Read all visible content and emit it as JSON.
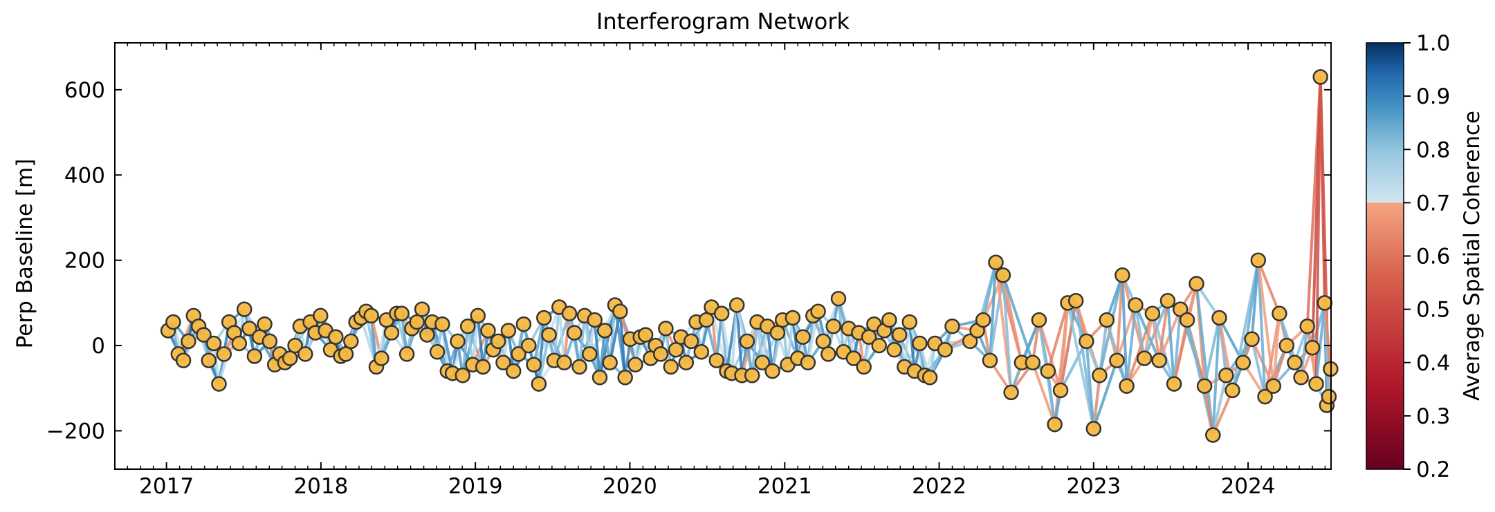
{
  "chart_data": {
    "type": "scatter",
    "title": "Interferogram Network",
    "xlabel": "",
    "ylabel": "Perp Baseline [m]",
    "xlim": [
      "2016-09-01",
      "2024-07-15"
    ],
    "ylim": [
      -290,
      710
    ],
    "x_ticks": [
      "2017",
      "2018",
      "2019",
      "2020",
      "2021",
      "2022",
      "2023",
      "2024"
    ],
    "y_ticks": [
      -200,
      0,
      200,
      400,
      600
    ],
    "y_tick_labels": [
      "−200",
      "0",
      "200",
      "400",
      "600"
    ],
    "grid": false,
    "marker_color": "#f5b842",
    "marker_edge_color": "#333333",
    "colorbar": {
      "label": "Average Spatial Coherence",
      "range": [
        0.2,
        1.0
      ],
      "ticks": [
        "0.2",
        "0.3",
        "0.4",
        "0.5",
        "0.6",
        "0.7",
        "0.8",
        "0.9",
        "1.0"
      ],
      "colormap": "RdBu",
      "threshold": 0.7,
      "stops_low": [
        "#67001f",
        "#b2182b",
        "#d6604d",
        "#f4a582"
      ],
      "stops_high": [
        "#d1e5f0",
        "#92c5de",
        "#4393c3",
        "#2166ac",
        "#053061"
      ]
    },
    "acquisitions": [
      {
        "date": "2017-01-05",
        "bperp": 35
      },
      {
        "date": "2017-01-17",
        "bperp": 55
      },
      {
        "date": "2017-01-29",
        "bperp": -20
      },
      {
        "date": "2017-02-10",
        "bperp": -35
      },
      {
        "date": "2017-02-22",
        "bperp": 10
      },
      {
        "date": "2017-03-06",
        "bperp": 70
      },
      {
        "date": "2017-03-18",
        "bperp": 45
      },
      {
        "date": "2017-03-30",
        "bperp": 25
      },
      {
        "date": "2017-04-11",
        "bperp": -35
      },
      {
        "date": "2017-04-23",
        "bperp": 5
      },
      {
        "date": "2017-05-05",
        "bperp": -90
      },
      {
        "date": "2017-05-17",
        "bperp": -20
      },
      {
        "date": "2017-05-29",
        "bperp": 55
      },
      {
        "date": "2017-06-10",
        "bperp": 30
      },
      {
        "date": "2017-06-22",
        "bperp": 5
      },
      {
        "date": "2017-07-04",
        "bperp": 85
      },
      {
        "date": "2017-07-16",
        "bperp": 40
      },
      {
        "date": "2017-07-28",
        "bperp": -25
      },
      {
        "date": "2017-08-09",
        "bperp": 20
      },
      {
        "date": "2017-08-21",
        "bperp": 50
      },
      {
        "date": "2017-09-02",
        "bperp": 10
      },
      {
        "date": "2017-09-14",
        "bperp": -45
      },
      {
        "date": "2017-09-26",
        "bperp": -20
      },
      {
        "date": "2017-10-08",
        "bperp": -40
      },
      {
        "date": "2017-10-20",
        "bperp": -30
      },
      {
        "date": "2017-11-01",
        "bperp": 0
      },
      {
        "date": "2017-11-13",
        "bperp": 45
      },
      {
        "date": "2017-11-25",
        "bperp": -20
      },
      {
        "date": "2017-12-07",
        "bperp": 55
      },
      {
        "date": "2017-12-19",
        "bperp": 30
      },
      {
        "date": "2017-12-31",
        "bperp": 70
      },
      {
        "date": "2018-01-12",
        "bperp": 35
      },
      {
        "date": "2018-01-24",
        "bperp": -10
      },
      {
        "date": "2018-02-05",
        "bperp": 20
      },
      {
        "date": "2018-02-17",
        "bperp": -25
      },
      {
        "date": "2018-03-01",
        "bperp": -20
      },
      {
        "date": "2018-03-13",
        "bperp": 10
      },
      {
        "date": "2018-03-25",
        "bperp": 55
      },
      {
        "date": "2018-04-06",
        "bperp": 65
      },
      {
        "date": "2018-04-18",
        "bperp": 80
      },
      {
        "date": "2018-04-30",
        "bperp": 70
      },
      {
        "date": "2018-05-12",
        "bperp": -50
      },
      {
        "date": "2018-05-24",
        "bperp": -30
      },
      {
        "date": "2018-06-05",
        "bperp": 60
      },
      {
        "date": "2018-06-17",
        "bperp": 30
      },
      {
        "date": "2018-06-29",
        "bperp": 75
      },
      {
        "date": "2018-07-11",
        "bperp": 75
      },
      {
        "date": "2018-07-23",
        "bperp": -20
      },
      {
        "date": "2018-08-04",
        "bperp": 40
      },
      {
        "date": "2018-08-16",
        "bperp": 55
      },
      {
        "date": "2018-08-28",
        "bperp": 85
      },
      {
        "date": "2018-09-09",
        "bperp": 25
      },
      {
        "date": "2018-09-21",
        "bperp": 55
      },
      {
        "date": "2018-10-03",
        "bperp": -15
      },
      {
        "date": "2018-10-15",
        "bperp": 50
      },
      {
        "date": "2018-10-27",
        "bperp": -60
      },
      {
        "date": "2018-11-08",
        "bperp": -65
      },
      {
        "date": "2018-11-20",
        "bperp": 10
      },
      {
        "date": "2018-12-02",
        "bperp": -70
      },
      {
        "date": "2018-12-14",
        "bperp": 45
      },
      {
        "date": "2018-12-26",
        "bperp": -45
      },
      {
        "date": "2019-01-07",
        "bperp": 70
      },
      {
        "date": "2019-01-19",
        "bperp": -50
      },
      {
        "date": "2019-01-31",
        "bperp": 35
      },
      {
        "date": "2019-02-12",
        "bperp": -10
      },
      {
        "date": "2019-02-24",
        "bperp": 10
      },
      {
        "date": "2019-03-08",
        "bperp": -40
      },
      {
        "date": "2019-03-20",
        "bperp": 35
      },
      {
        "date": "2019-04-01",
        "bperp": -60
      },
      {
        "date": "2019-04-13",
        "bperp": -20
      },
      {
        "date": "2019-04-25",
        "bperp": 50
      },
      {
        "date": "2019-05-07",
        "bperp": 0
      },
      {
        "date": "2019-05-19",
        "bperp": -45
      },
      {
        "date": "2019-05-31",
        "bperp": -90
      },
      {
        "date": "2019-06-12",
        "bperp": 65
      },
      {
        "date": "2019-06-24",
        "bperp": 25
      },
      {
        "date": "2019-07-06",
        "bperp": -35
      },
      {
        "date": "2019-07-18",
        "bperp": 90
      },
      {
        "date": "2019-07-30",
        "bperp": -40
      },
      {
        "date": "2019-08-11",
        "bperp": 75
      },
      {
        "date": "2019-08-23",
        "bperp": 30
      },
      {
        "date": "2019-09-04",
        "bperp": -50
      },
      {
        "date": "2019-09-16",
        "bperp": 70
      },
      {
        "date": "2019-09-28",
        "bperp": -20
      },
      {
        "date": "2019-10-10",
        "bperp": 60
      },
      {
        "date": "2019-10-22",
        "bperp": -75
      },
      {
        "date": "2019-11-03",
        "bperp": 35
      },
      {
        "date": "2019-11-15",
        "bperp": -40
      },
      {
        "date": "2019-11-27",
        "bperp": 95
      },
      {
        "date": "2019-12-09",
        "bperp": 80
      },
      {
        "date": "2019-12-21",
        "bperp": -75
      },
      {
        "date": "2020-01-02",
        "bperp": 15
      },
      {
        "date": "2020-01-14",
        "bperp": -45
      },
      {
        "date": "2020-01-26",
        "bperp": 20
      },
      {
        "date": "2020-02-07",
        "bperp": 25
      },
      {
        "date": "2020-02-19",
        "bperp": -30
      },
      {
        "date": "2020-03-02",
        "bperp": 0
      },
      {
        "date": "2020-03-14",
        "bperp": -20
      },
      {
        "date": "2020-03-26",
        "bperp": 40
      },
      {
        "date": "2020-04-07",
        "bperp": -50
      },
      {
        "date": "2020-04-19",
        "bperp": -10
      },
      {
        "date": "2020-05-01",
        "bperp": 20
      },
      {
        "date": "2020-05-13",
        "bperp": -40
      },
      {
        "date": "2020-05-25",
        "bperp": 10
      },
      {
        "date": "2020-06-06",
        "bperp": 55
      },
      {
        "date": "2020-06-18",
        "bperp": -15
      },
      {
        "date": "2020-06-30",
        "bperp": 60
      },
      {
        "date": "2020-07-12",
        "bperp": 90
      },
      {
        "date": "2020-07-24",
        "bperp": -35
      },
      {
        "date": "2020-08-05",
        "bperp": 75
      },
      {
        "date": "2020-08-17",
        "bperp": -60
      },
      {
        "date": "2020-08-29",
        "bperp": -65
      },
      {
        "date": "2020-09-10",
        "bperp": 95
      },
      {
        "date": "2020-09-22",
        "bperp": -70
      },
      {
        "date": "2020-10-04",
        "bperp": 10
      },
      {
        "date": "2020-10-16",
        "bperp": -70
      },
      {
        "date": "2020-10-28",
        "bperp": 55
      },
      {
        "date": "2020-11-09",
        "bperp": -40
      },
      {
        "date": "2020-11-21",
        "bperp": 45
      },
      {
        "date": "2020-12-03",
        "bperp": -60
      },
      {
        "date": "2020-12-15",
        "bperp": 30
      },
      {
        "date": "2020-12-27",
        "bperp": 60
      },
      {
        "date": "2021-01-08",
        "bperp": -45
      },
      {
        "date": "2021-01-20",
        "bperp": 65
      },
      {
        "date": "2021-02-01",
        "bperp": -30
      },
      {
        "date": "2021-02-13",
        "bperp": 20
      },
      {
        "date": "2021-02-25",
        "bperp": -40
      },
      {
        "date": "2021-03-09",
        "bperp": 70
      },
      {
        "date": "2021-03-21",
        "bperp": 80
      },
      {
        "date": "2021-04-02",
        "bperp": 10
      },
      {
        "date": "2021-04-14",
        "bperp": -20
      },
      {
        "date": "2021-04-26",
        "bperp": 45
      },
      {
        "date": "2021-05-08",
        "bperp": 110
      },
      {
        "date": "2021-05-20",
        "bperp": -15
      },
      {
        "date": "2021-06-01",
        "bperp": 40
      },
      {
        "date": "2021-06-13",
        "bperp": -30
      },
      {
        "date": "2021-06-25",
        "bperp": 30
      },
      {
        "date": "2021-07-07",
        "bperp": -50
      },
      {
        "date": "2021-07-19",
        "bperp": 20
      },
      {
        "date": "2021-07-31",
        "bperp": 50
      },
      {
        "date": "2021-08-12",
        "bperp": 0
      },
      {
        "date": "2021-08-24",
        "bperp": 35
      },
      {
        "date": "2021-09-05",
        "bperp": 60
      },
      {
        "date": "2021-09-17",
        "bperp": -10
      },
      {
        "date": "2021-09-29",
        "bperp": 25
      },
      {
        "date": "2021-10-11",
        "bperp": -50
      },
      {
        "date": "2021-10-23",
        "bperp": 55
      },
      {
        "date": "2021-11-04",
        "bperp": -60
      },
      {
        "date": "2021-11-16",
        "bperp": 5
      },
      {
        "date": "2021-11-28",
        "bperp": -70
      },
      {
        "date": "2021-12-10",
        "bperp": -75
      },
      {
        "date": "2021-12-22",
        "bperp": 5
      },
      {
        "date": "2022-01-15",
        "bperp": -10
      },
      {
        "date": "2022-02-01",
        "bperp": 45
      },
      {
        "date": "2022-03-15",
        "bperp": 10
      },
      {
        "date": "2022-04-01",
        "bperp": 35
      },
      {
        "date": "2022-04-15",
        "bperp": 60
      },
      {
        "date": "2022-05-01",
        "bperp": -35
      },
      {
        "date": "2022-05-15",
        "bperp": 195
      },
      {
        "date": "2022-06-01",
        "bperp": 165
      },
      {
        "date": "2022-06-20",
        "bperp": -110
      },
      {
        "date": "2022-07-15",
        "bperp": -40
      },
      {
        "date": "2022-08-10",
        "bperp": -40
      },
      {
        "date": "2022-08-25",
        "bperp": 60
      },
      {
        "date": "2022-09-15",
        "bperp": -60
      },
      {
        "date": "2022-10-01",
        "bperp": -185
      },
      {
        "date": "2022-10-15",
        "bperp": -105
      },
      {
        "date": "2022-11-01",
        "bperp": 100
      },
      {
        "date": "2022-11-20",
        "bperp": 105
      },
      {
        "date": "2022-12-15",
        "bperp": 10
      },
      {
        "date": "2023-01-01",
        "bperp": -195
      },
      {
        "date": "2023-01-15",
        "bperp": -70
      },
      {
        "date": "2023-02-01",
        "bperp": 60
      },
      {
        "date": "2023-02-25",
        "bperp": -35
      },
      {
        "date": "2023-03-10",
        "bperp": 165
      },
      {
        "date": "2023-03-20",
        "bperp": -95
      },
      {
        "date": "2023-04-10",
        "bperp": 95
      },
      {
        "date": "2023-05-01",
        "bperp": -30
      },
      {
        "date": "2023-05-20",
        "bperp": 75
      },
      {
        "date": "2023-06-05",
        "bperp": -35
      },
      {
        "date": "2023-06-25",
        "bperp": 105
      },
      {
        "date": "2023-07-10",
        "bperp": -90
      },
      {
        "date": "2023-07-25",
        "bperp": 85
      },
      {
        "date": "2023-08-10",
        "bperp": 60
      },
      {
        "date": "2023-09-01",
        "bperp": 145
      },
      {
        "date": "2023-09-20",
        "bperp": -95
      },
      {
        "date": "2023-10-10",
        "bperp": -210
      },
      {
        "date": "2023-10-25",
        "bperp": 65
      },
      {
        "date": "2023-11-10",
        "bperp": -70
      },
      {
        "date": "2023-11-25",
        "bperp": -105
      },
      {
        "date": "2023-12-20",
        "bperp": -40
      },
      {
        "date": "2024-01-10",
        "bperp": 15
      },
      {
        "date": "2024-01-25",
        "bperp": 200
      },
      {
        "date": "2024-02-10",
        "bperp": -120
      },
      {
        "date": "2024-03-01",
        "bperp": -95
      },
      {
        "date": "2024-03-15",
        "bperp": 75
      },
      {
        "date": "2024-04-01",
        "bperp": 0
      },
      {
        "date": "2024-04-20",
        "bperp": -40
      },
      {
        "date": "2024-05-05",
        "bperp": -75
      },
      {
        "date": "2024-05-20",
        "bperp": 45
      },
      {
        "date": "2024-06-01",
        "bperp": -5
      },
      {
        "date": "2024-06-10",
        "bperp": -90
      },
      {
        "date": "2024-06-20",
        "bperp": 630
      },
      {
        "date": "2024-06-30",
        "bperp": 100
      },
      {
        "date": "2024-07-05",
        "bperp": -140
      },
      {
        "date": "2024-07-10",
        "bperp": -120
      },
      {
        "date": "2024-07-14",
        "bperp": -55
      }
    ]
  }
}
